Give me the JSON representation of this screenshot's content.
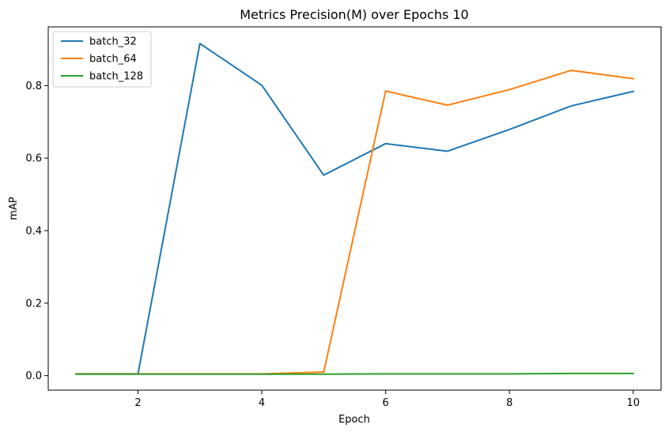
{
  "chart_data": {
    "type": "line",
    "title": "Metrics Precision(M) over Epochs 10",
    "xlabel": "Epoch",
    "ylabel": "mAP",
    "x": [
      1,
      2,
      3,
      4,
      5,
      6,
      7,
      8,
      9,
      10
    ],
    "xlim": [
      0.55,
      10.45
    ],
    "ylim": [
      -0.04,
      0.962
    ],
    "xticks": [
      2,
      4,
      6,
      8,
      10
    ],
    "yticks": [
      0.0,
      0.2,
      0.4,
      0.6,
      0.8
    ],
    "xtick_labels": [
      "2",
      "4",
      "6",
      "8",
      "10"
    ],
    "ytick_labels": [
      "0.0",
      "0.2",
      "0.4",
      "0.6",
      "0.8"
    ],
    "grid": false,
    "legend_position": "top-left",
    "series": [
      {
        "name": "batch_32",
        "color": "#1f77b4",
        "values": [
          0.005,
          0.005,
          0.916,
          0.801,
          0.553,
          0.64,
          0.619,
          0.679,
          0.744,
          0.784
        ]
      },
      {
        "name": "batch_64",
        "color": "#ff7f0e",
        "values": [
          0.005,
          0.005,
          0.005,
          0.005,
          0.01,
          0.785,
          0.746,
          0.789,
          0.842,
          0.819
        ]
      },
      {
        "name": "batch_128",
        "color": "#2ca02c",
        "values": [
          0.004,
          0.004,
          0.004,
          0.004,
          0.004,
          0.005,
          0.005,
          0.005,
          0.006,
          0.006
        ]
      }
    ]
  }
}
